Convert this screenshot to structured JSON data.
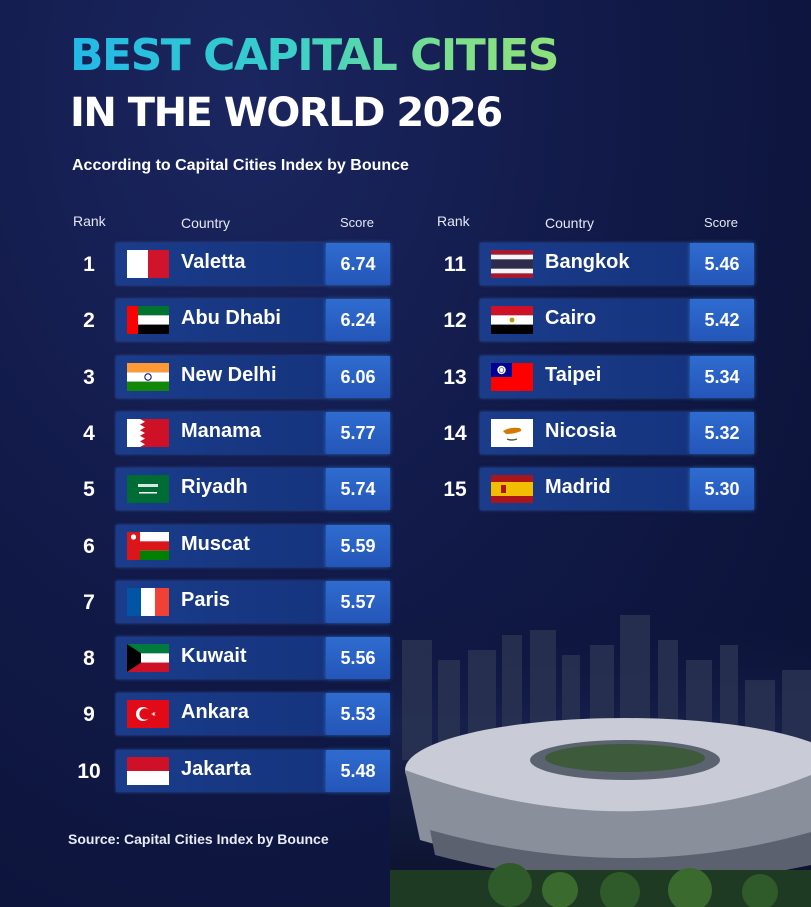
{
  "title": {
    "line1": "BEST CAPITAL CITIES",
    "line2": "IN THE WORLD 2026",
    "subtitle": "According to Capital Cities Index by Bounce"
  },
  "headers": {
    "rank": "Rank",
    "country": "Country",
    "score": "Score"
  },
  "source": "Source: Capital Cities Index by Bounce",
  "colors": {
    "bar": "#1a3c8a",
    "score_box": "#2f6cd0",
    "title_gradient_start": "#22b8e8",
    "title_gradient_end": "#8fe07a"
  },
  "chart_data": {
    "type": "table",
    "title": "BEST CAPITAL CITIES IN THE WORLD 2026",
    "columns": [
      "Rank",
      "Country",
      "Score"
    ],
    "rows": [
      {
        "rank": "1",
        "city": "Valetta",
        "score": "6.74",
        "flag": "malta-flag-icon"
      },
      {
        "rank": "2",
        "city": "Abu Dhabi",
        "score": "6.24",
        "flag": "uae-flag-icon"
      },
      {
        "rank": "3",
        "city": "New Delhi",
        "score": "6.06",
        "flag": "india-flag-icon"
      },
      {
        "rank": "4",
        "city": "Manama",
        "score": "5.77",
        "flag": "bahrain-flag-icon"
      },
      {
        "rank": "5",
        "city": "Riyadh",
        "score": "5.74",
        "flag": "saudi-arabia-flag-icon"
      },
      {
        "rank": "6",
        "city": "Muscat",
        "score": "5.59",
        "flag": "oman-flag-icon"
      },
      {
        "rank": "7",
        "city": "Paris",
        "score": "5.57",
        "flag": "france-flag-icon"
      },
      {
        "rank": "8",
        "city": "Kuwait",
        "score": "5.56",
        "flag": "kuwait-flag-icon"
      },
      {
        "rank": "9",
        "city": "Ankara",
        "score": "5.53",
        "flag": "turkey-flag-icon"
      },
      {
        "rank": "10",
        "city": "Jakarta",
        "score": "5.48",
        "flag": "indonesia-flag-icon"
      },
      {
        "rank": "11",
        "city": "Bangkok",
        "score": "5.46",
        "flag": "thailand-flag-icon"
      },
      {
        "rank": "12",
        "city": "Cairo",
        "score": "5.42",
        "flag": "egypt-flag-icon"
      },
      {
        "rank": "13",
        "city": "Taipei",
        "score": "5.34",
        "flag": "taiwan-flag-icon"
      },
      {
        "rank": "14",
        "city": "Nicosia",
        "score": "5.32",
        "flag": "cyprus-flag-icon"
      },
      {
        "rank": "15",
        "city": "Madrid",
        "score": "5.30",
        "flag": "spain-flag-icon"
      }
    ]
  }
}
